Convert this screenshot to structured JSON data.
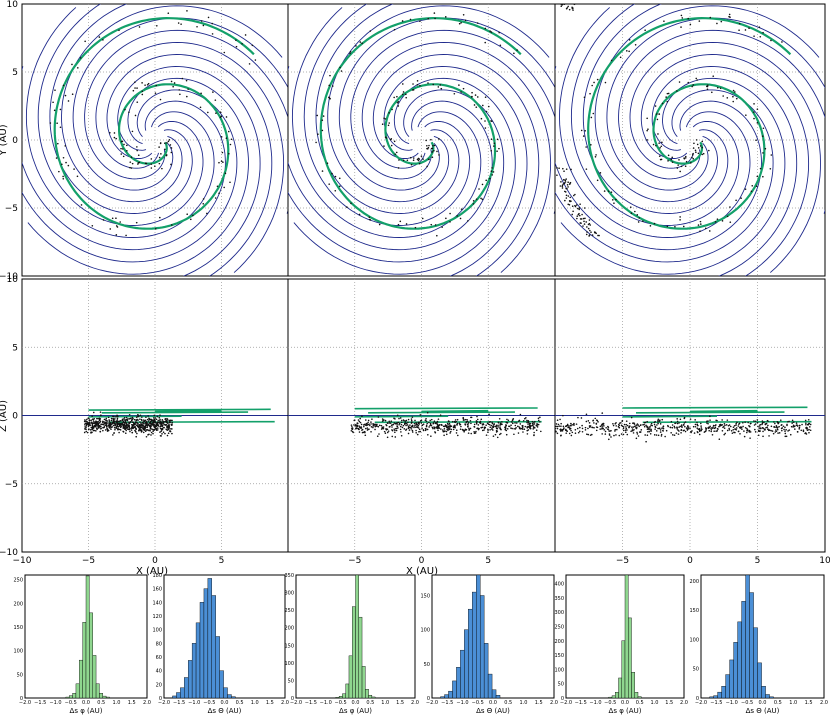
{
  "chart_data": {
    "type": "scatter",
    "layout": "3 columns x (xy panel, xz panel) + 6 histograms",
    "top_axes": {
      "xlabel": "X (AU)",
      "ylabel_top": "Y (AU)",
      "ylabel_mid": "Z (AU)",
      "xlim": [
        -10,
        10
      ],
      "ylim": [
        -10,
        10
      ],
      "x_ticks": [
        "−10",
        "−5",
        "0",
        "5",
        "10"
      ],
      "y_ticks": [
        "10",
        "5",
        "0",
        "−5",
        "−10"
      ],
      "grid": true,
      "colors": {
        "orbit": "#1f2a8c",
        "stream": "#13a06a",
        "particles": "#111111"
      }
    },
    "panels": [
      {
        "name": "column-1",
        "spiral_turns": 3.3,
        "stream_z_offset": 0.4,
        "particle_z": -0.7,
        "stream_end_angle": 5.9
      },
      {
        "name": "column-2",
        "spiral_turns": 3.3,
        "stream_z_offset": 0.5,
        "particle_z": -0.8,
        "stream_end_angle": 5.9
      },
      {
        "name": "column-3",
        "spiral_turns": 3.3,
        "stream_z_offset": 0.55,
        "particle_z": -0.9,
        "stream_end_angle": 5.9
      }
    ],
    "histograms": [
      {
        "xlabel": "Δs φ (AU)",
        "color": "#8fd68f",
        "ylim": [
          0,
          260
        ],
        "y_ticks": [
          "0",
          "50",
          "100",
          "150",
          "200",
          "250"
        ],
        "values": [
          2,
          5,
          10,
          30,
          80,
          160,
          258,
          180,
          90,
          30,
          10,
          4,
          2
        ]
      },
      {
        "xlabel": "Δs Θ (AU)",
        "color": "#4b8fd6",
        "ylim": [
          0,
          180
        ],
        "y_ticks": [
          "0",
          "20",
          "40",
          "60",
          "80",
          "100",
          "120",
          "140",
          "160",
          "180"
        ],
        "values": [
          3,
          8,
          15,
          30,
          55,
          80,
          110,
          140,
          160,
          175,
          150,
          90,
          40,
          15,
          5,
          2
        ]
      },
      {
        "xlabel": "Δs φ (AU)",
        "color": "#8fd68f",
        "ylim": [
          0,
          350
        ],
        "y_ticks": [
          "0",
          "50",
          "100",
          "150",
          "200",
          "250",
          "300",
          "350"
        ],
        "values": [
          2,
          5,
          12,
          40,
          120,
          260,
          350,
          230,
          90,
          25,
          8,
          3
        ]
      },
      {
        "xlabel": "Δs Θ (AU)",
        "color": "#4b8fd6",
        "ylim": [
          0,
          180
        ],
        "y_ticks": [
          "0",
          "50",
          "100",
          "150"
        ],
        "values": [
          2,
          5,
          10,
          25,
          45,
          70,
          100,
          130,
          155,
          180,
          150,
          80,
          35,
          12,
          4
        ]
      },
      {
        "xlabel": "Δs φ (AU)",
        "color": "#8fd68f",
        "ylim": [
          0,
          430
        ],
        "y_ticks": [
          "0",
          "50",
          "100",
          "150",
          "200",
          "250",
          "300",
          "350",
          "400"
        ],
        "values": [
          3,
          8,
          20,
          70,
          200,
          430,
          280,
          90,
          20,
          5
        ]
      },
      {
        "xlabel": "Δs Θ (AU)",
        "color": "#4b8fd6",
        "ylim": [
          0,
          210
        ],
        "y_ticks": [
          "0",
          "50",
          "100",
          "150",
          "200"
        ],
        "values": [
          2,
          4,
          10,
          20,
          40,
          65,
          95,
          130,
          165,
          210,
          180,
          120,
          60,
          20,
          6,
          2
        ]
      }
    ],
    "hist_xticks": [
      "−2.0",
      "−1.5",
      "−1.0",
      "−0.5",
      "0.0",
      "0.5",
      "1.0",
      "1.5",
      "2.0"
    ]
  }
}
